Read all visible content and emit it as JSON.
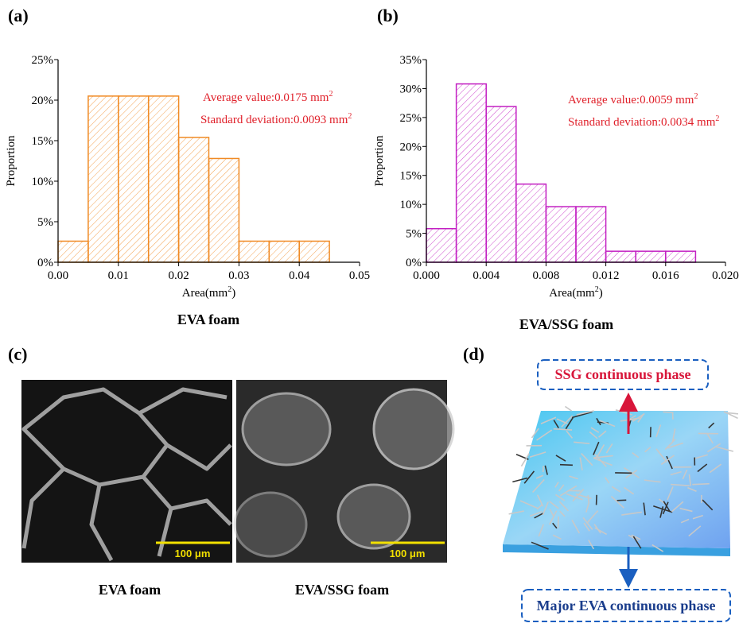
{
  "chart_data": [
    {
      "type": "histogram",
      "panel": "(a)",
      "caption": "EVA foam",
      "y_label": "Proportion",
      "x_label": {
        "text": "Area(mm",
        "sup": "2",
        "end": ")"
      },
      "bins": [
        0,
        0.005,
        0.01,
        0.015,
        0.02,
        0.025,
        0.03,
        0.035,
        0.04,
        0.045
      ],
      "values": [
        2.6,
        20.5,
        20.5,
        20.5,
        15.4,
        12.8,
        2.6,
        2.6,
        2.6
      ],
      "color": "#f08a24",
      "xlim": [
        0,
        0.05
      ],
      "xticks": [
        {
          "value": 0,
          "label": "0.00"
        },
        0.01,
        0.02,
        0.03,
        0.04,
        0.05
      ],
      "ylim": [
        0,
        25
      ],
      "yticks": [
        {
          "value": 0,
          "label": "0%"
        },
        {
          "value": 5,
          "label": "5%"
        },
        {
          "value": 10,
          "label": "10%"
        },
        {
          "value": 15,
          "label": "15%"
        },
        {
          "value": 20,
          "label": "20%"
        },
        {
          "value": 25,
          "label": "25%"
        }
      ],
      "annotations": [
        {
          "text": "Average value:0.0175 mm",
          "sup": "2"
        },
        {
          "text": "Standard deviation:0.0093 mm",
          "sup": "2"
        }
      ],
      "annotation_color": "#e0202a"
    },
    {
      "type": "histogram",
      "panel": "(b)",
      "caption": "EVA/SSG foam",
      "y_label": "Proportion",
      "x_label": {
        "text": "Area(mm",
        "sup": "2",
        "end": ")"
      },
      "bins": [
        0,
        0.002,
        0.004,
        0.006,
        0.008,
        0.01,
        0.012,
        0.014,
        0.016,
        0.018
      ],
      "values": [
        5.8,
        30.8,
        26.9,
        13.5,
        9.6,
        9.6,
        1.9,
        1.9,
        1.9
      ],
      "color": "#c21fc2",
      "xlim": [
        0,
        0.02
      ],
      "xticks": [
        {
          "value": 0,
          "label": "0.000"
        },
        0.004,
        0.008,
        0.012,
        0.016,
        {
          "value": 0.02,
          "label": "0.020"
        }
      ],
      "ylim": [
        0,
        35
      ],
      "yticks": [
        {
          "value": 0,
          "label": "0%"
        },
        {
          "value": 5,
          "label": "5%"
        },
        {
          "value": 10,
          "label": "10%"
        },
        {
          "value": 15,
          "label": "15%"
        },
        {
          "value": 20,
          "label": "20%"
        },
        {
          "value": 25,
          "label": "25%"
        },
        {
          "value": 30,
          "label": "30%"
        },
        {
          "value": 35,
          "label": "35%"
        }
      ],
      "annotations": [
        {
          "text": "Average value:0.0059 mm",
          "sup": "2"
        },
        {
          "text": "Standard deviation:0.0034 mm",
          "sup": "2"
        }
      ],
      "annotation_color": "#e0202a"
    }
  ],
  "sem_panel": {
    "label": "(c)",
    "images": [
      {
        "caption": "EVA foam",
        "scale_bar": "100 μm"
      },
      {
        "caption": "EVA/SSG foam",
        "scale_bar": "100 μm"
      }
    ]
  },
  "diagram": {
    "label": "(d)",
    "top_label": "SSG continuous phase",
    "bottom_label": "Major EVA continuous phase"
  }
}
